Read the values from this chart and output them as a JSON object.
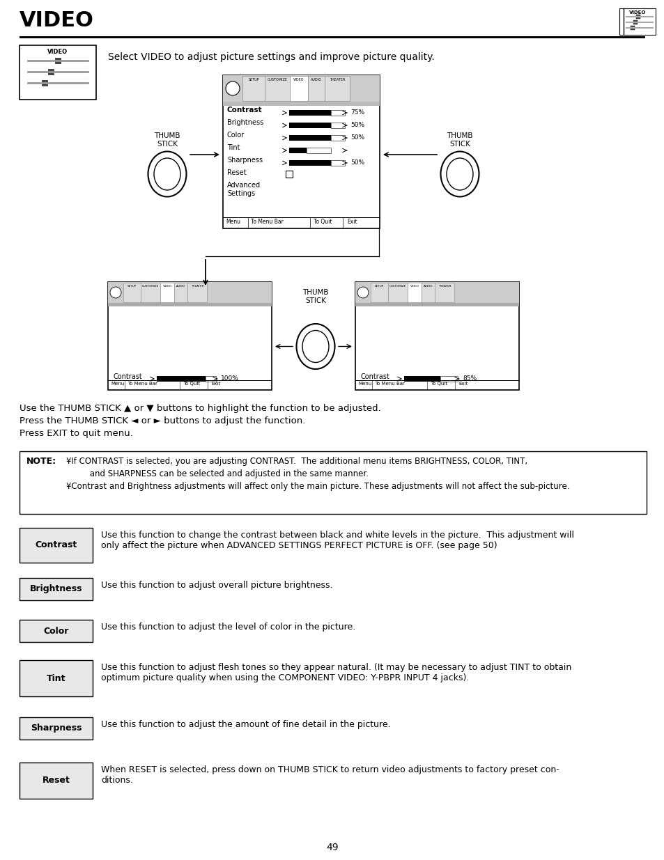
{
  "title": "VIDEO",
  "page_number": "49",
  "bg_color": "#ffffff",
  "intro_text": "Select VIDEO to adjust picture settings and improve picture quality.",
  "instructions": [
    "Use the THUMB STICK ▲ or ▼ buttons to highlight the function to be adjusted.",
    "Press the THUMB STICK ◄ or ► buttons to adjust the function.",
    "Press EXIT to quit menu."
  ],
  "note_title": "NOTE:",
  "note_lines": [
    "¥If CONTRAST is selected, you are adjusting CONTRAST.  The additional menu items BRIGHTNESS, COLOR, TINT,",
    "         and SHARPNESS can be selected and adjusted in the same manner.",
    "¥Contrast and Brightness adjustments will affect only the main picture. These adjustments will not affect the sub-picture."
  ],
  "menu_items": [
    "Contrast",
    "Brightness",
    "Color",
    "Tint",
    "Sharpness",
    "Reset",
    "Advanced\nSettings"
  ],
  "menu_has_bar": [
    true,
    true,
    true,
    true,
    true,
    false,
    false
  ],
  "menu_values": [
    "75%",
    "50%",
    "50%",
    "",
    "50%",
    "",
    ""
  ],
  "menu_bar_full": [
    true,
    true,
    true,
    false,
    true,
    false,
    false
  ],
  "tabs": [
    "SETUP",
    "CUSTOMIZE",
    "VIDEO",
    "AUDIO",
    "THEATER"
  ],
  "feature_rows": [
    {
      "label": "Contrast",
      "text": "Use this function to change the contrast between black and white levels in the picture.  This adjustment will\nonly affect the picture when ADVANCED SETTINGS PERFECT PICTURE is OFF. (see page 50)"
    },
    {
      "label": "Brightness",
      "text": "Use this function to adjust overall picture brightness."
    },
    {
      "label": "Color",
      "text": "Use this function to adjust the level of color in the picture."
    },
    {
      "label": "Tint",
      "text": "Use this function to adjust flesh tones so they appear natural. (It may be necessary to adjust TINT to obtain\noptimum picture quality when using the COMPONENT VIDEO: Y-PBPR INPUT 4 jacks)."
    },
    {
      "label": "Sharpness",
      "text": "Use this function to adjust the amount of fine detail in the picture."
    },
    {
      "label": "Reset",
      "text": "When RESET is selected, press down on THUMB STICK to return video adjustments to factory preset con-\nditions."
    }
  ]
}
